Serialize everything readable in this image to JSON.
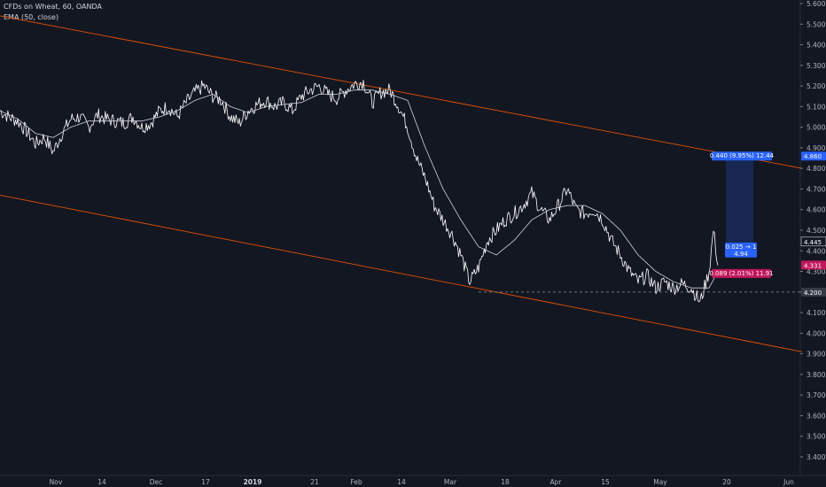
{
  "header": {
    "symbol_line": "CFDs on Wheat, 60, OANDA",
    "indicator_line": "EMA (50, close)"
  },
  "colors": {
    "background": "#131722",
    "price": "#ffffff",
    "channel": "#e65100",
    "axis_text": "#b2b5be",
    "long_tag": "#2962ff",
    "short_tag": "#c2185b"
  },
  "chart_data": {
    "type": "line",
    "ylim": [
      3.4,
      5.6
    ],
    "y_ticks": [
      "5.600",
      "5.500",
      "5.400",
      "5.300",
      "5.200",
      "5.100",
      "5.000",
      "4.900",
      "4.800",
      "4.700",
      "4.600",
      "4.500",
      "4.400",
      "4.300",
      "4.200",
      "4.100",
      "4.000",
      "3.900",
      "3.800",
      "3.700",
      "3.600",
      "3.500",
      "3.400"
    ],
    "x_ticks": [
      "Nov",
      "14",
      "Dec",
      "17",
      "2019",
      "21",
      "Feb",
      "14",
      "Mar",
      "18",
      "Apr",
      "15",
      "May",
      "20",
      "Jun"
    ],
    "x_ticks_bold": [
      "2019"
    ],
    "series": [
      {
        "x": [
          0,
          10,
          20,
          30,
          40,
          50,
          60,
          70,
          80,
          90,
          100,
          110,
          120,
          130,
          140,
          150,
          160,
          170,
          180,
          190,
          200,
          210,
          220,
          230,
          240,
          250,
          260,
          270,
          280,
          290,
          300,
          310,
          320,
          330,
          340,
          350,
          360,
          370,
          380,
          390,
          400,
          410,
          420,
          430,
          440,
          450,
          460,
          470,
          480,
          490,
          500,
          510,
          520,
          530,
          540,
          550,
          560,
          570,
          580,
          590,
          600,
          610,
          620,
          630,
          640,
          650,
          660,
          670,
          680,
          690,
          700,
          710,
          720,
          730,
          740,
          750,
          760,
          770,
          780,
          790,
          800,
          805,
          810
        ],
        "values": [
          5.08,
          5.05,
          5.03,
          4.98,
          4.92,
          4.95,
          4.88,
          4.97,
          5.04,
          5.05,
          5.0,
          5.06,
          5.04,
          5.03,
          5.02,
          5.05,
          5.0,
          5.02,
          5.08,
          5.1,
          5.05,
          5.12,
          5.17,
          5.2,
          5.15,
          5.13,
          5.05,
          5.02,
          5.08,
          5.11,
          5.13,
          5.1,
          5.12,
          5.08,
          5.15,
          5.18,
          5.2,
          5.16,
          5.14,
          5.18,
          5.21,
          5.22,
          5.12,
          5.17,
          5.18,
          5.1,
          5.0,
          4.85,
          4.75,
          4.62,
          4.55,
          4.48,
          4.38,
          4.25,
          4.32,
          4.45,
          4.5,
          4.55,
          4.58,
          4.62,
          4.68,
          4.6,
          4.55,
          4.62,
          4.7,
          4.6,
          4.58,
          4.6,
          4.55,
          4.45,
          4.38,
          4.3,
          4.25,
          4.28,
          4.22,
          4.25,
          4.22,
          4.24,
          4.22,
          4.15,
          4.3,
          4.5,
          4.33
        ]
      },
      {
        "x": [
          0,
          20,
          40,
          60,
          80,
          100,
          120,
          140,
          160,
          180,
          200,
          220,
          240,
          260,
          280,
          300,
          320,
          340,
          360,
          380,
          400,
          420,
          440,
          460,
          480,
          500,
          520,
          540,
          560,
          580,
          600,
          620,
          640,
          660,
          680,
          700,
          720,
          740,
          760,
          780,
          800,
          810
        ],
        "values": [
          5.08,
          5.04,
          4.97,
          4.95,
          5.0,
          5.03,
          5.03,
          5.03,
          5.03,
          5.05,
          5.08,
          5.13,
          5.16,
          5.1,
          5.07,
          5.1,
          5.11,
          5.12,
          5.16,
          5.16,
          5.18,
          5.18,
          5.16,
          5.13,
          4.9,
          4.7,
          4.55,
          4.42,
          4.38,
          4.45,
          4.55,
          4.6,
          4.62,
          4.62,
          4.58,
          4.5,
          4.38,
          4.3,
          4.25,
          4.22,
          4.22,
          4.3
        ]
      }
    ],
    "channel_upper": [
      [
        0,
        5.54
      ],
      [
        905,
        4.8
      ]
    ],
    "channel_lower": [
      [
        0,
        4.67
      ],
      [
        905,
        3.91
      ]
    ],
    "horizontal_level": 4.2
  },
  "tags": {
    "current_price": "4.445",
    "price_2": "4.331",
    "price_3": "4.200",
    "target_price": "4.860",
    "target_label": "0.440 (9.95%) 12.44",
    "entry_line1": "0.025 → 1",
    "entry_line2": "4.94",
    "stop_label": "0.089 (2.01%) 11.91"
  }
}
